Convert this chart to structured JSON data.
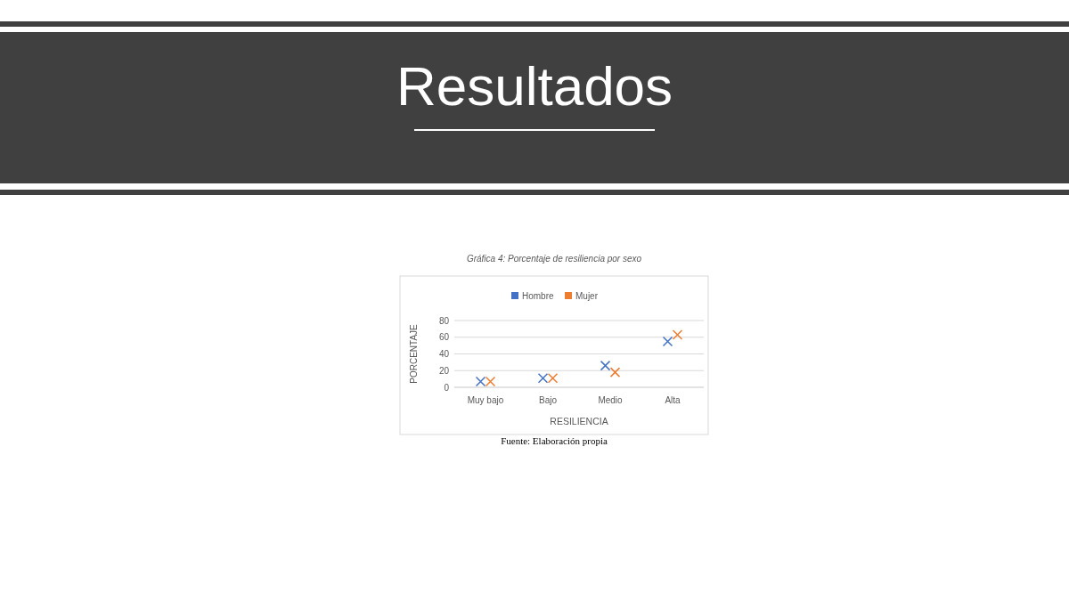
{
  "chart_data": {
    "type": "scatter",
    "title": "Resultados",
    "subtitle": "Gráfica 4: Porcentaje de resiliencia por sexo",
    "xlabel": "RESILIENCIA",
    "ylabel": "PORCENTAJE",
    "annotations": [
      "Fuente: Elaboración propia"
    ],
    "categories": [
      "Muy bajo",
      "Bajo",
      "Medio",
      "Alta"
    ],
    "series": [
      {
        "name": "Hombre",
        "color": "#4472c4",
        "values": [
          7,
          11,
          26,
          55
        ]
      },
      {
        "name": "Mujer",
        "color": "#ed7d31",
        "values": [
          7,
          11,
          18,
          63
        ]
      }
    ],
    "ylim": [
      0,
      80
    ],
    "yticks": [
      0,
      20,
      40,
      60,
      80
    ],
    "grid": "y",
    "legend": "top",
    "marker": "cross"
  }
}
